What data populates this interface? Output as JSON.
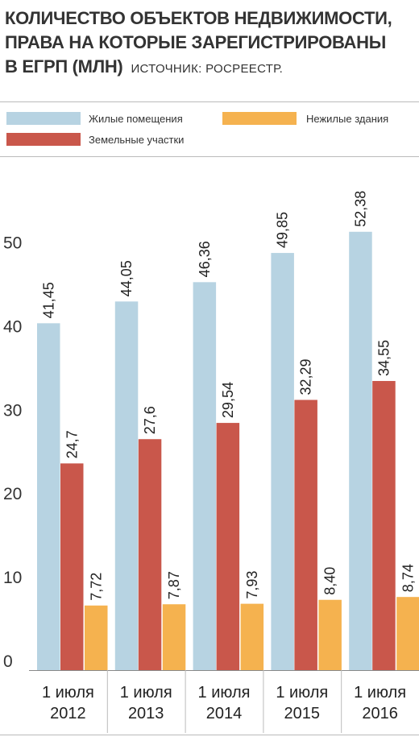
{
  "title_lines": [
    "КОЛИЧЕСТВО ОБЪЕКТОВ НЕДВИЖИМОСТИ,",
    "ПРАВА НА КОТОРЫЕ ЗАРЕГИСТРИРОВАНЫ",
    "В ЕГРП (МЛН)"
  ],
  "source": "ИСТОЧНИК: РОСРЕЕСТР.",
  "colors": {
    "residential": "#b7d3e2",
    "land": "#c9574b",
    "nonresidential": "#f5b24f"
  },
  "chart_data": {
    "type": "bar",
    "title": "КОЛИЧЕСТВО ОБЪЕКТОВ НЕДВИЖИМОСТИ, ПРАВА НА КОТОРЫЕ ЗАРЕГИСТРИРОВАНЫ В ЕГРП (МЛН)",
    "categories": [
      [
        "1 июля",
        "2012"
      ],
      [
        "1 июля",
        "2013"
      ],
      [
        "1 июля",
        "2014"
      ],
      [
        "1 июля",
        "2015"
      ],
      [
        "1 июля",
        "2016"
      ]
    ],
    "series": [
      {
        "name": "Жилые помещения",
        "values": [
          41.45,
          44.05,
          46.36,
          49.85,
          52.38
        ],
        "labels": [
          "41,45",
          "44,05",
          "46,36",
          "49,85",
          "52,38"
        ]
      },
      {
        "name": "Земельные участки",
        "values": [
          24.7,
          27.6,
          29.54,
          32.29,
          34.55
        ],
        "labels": [
          "24,7",
          "27,6",
          "29,54",
          "32,29",
          "34,55"
        ]
      },
      {
        "name": "Нежилые здания",
        "values": [
          7.72,
          7.87,
          7.93,
          8.4,
          8.74
        ],
        "labels": [
          "7,72",
          "7,87",
          "7,93",
          "8,40",
          "8,74"
        ]
      }
    ],
    "yticks": [
      "0",
      "10",
      "20",
      "30",
      "40",
      "50"
    ],
    "ylim": [
      0,
      60
    ],
    "legend_position": "top",
    "grid": false
  }
}
